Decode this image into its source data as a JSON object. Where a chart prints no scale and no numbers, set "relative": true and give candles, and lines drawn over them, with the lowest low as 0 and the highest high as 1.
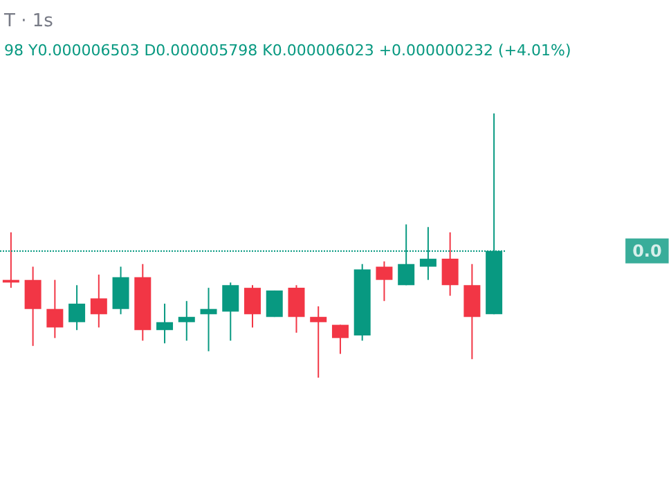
{
  "chart_data": {
    "type": "candlestick",
    "title": "T · 1s",
    "annotations": [
      "98 Y0.000006503 D0.000005798 K0.000006023 +0.000000232 (+4.01%)",
      "0.0"
    ],
    "relative": true,
    "categories": [
      null,
      null,
      null,
      null,
      null,
      null,
      null,
      null,
      null,
      null,
      null,
      null,
      null,
      null,
      null,
      null,
      null,
      null,
      null,
      null,
      null,
      null,
      null
    ],
    "ohlc": [
      [
        0.37,
        0.55,
        0.34,
        0.36
      ],
      [
        0.37,
        0.42,
        0.12,
        0.26
      ],
      [
        0.26,
        0.37,
        0.15,
        0.19
      ],
      [
        0.21,
        0.35,
        0.18,
        0.28
      ],
      [
        0.3,
        0.39,
        0.19,
        0.24
      ],
      [
        0.26,
        0.42,
        0.24,
        0.38
      ],
      [
        0.38,
        0.43,
        0.14,
        0.18
      ],
      [
        0.18,
        0.28,
        0.13,
        0.21
      ],
      [
        0.21,
        0.29,
        0.14,
        0.23
      ],
      [
        0.24,
        0.34,
        0.1,
        0.26
      ],
      [
        0.25,
        0.36,
        0.14,
        0.35
      ],
      [
        0.34,
        0.35,
        0.19,
        0.24
      ],
      [
        0.23,
        0.33,
        0.23,
        0.33
      ],
      [
        0.34,
        0.35,
        0.17,
        0.23
      ],
      [
        0.23,
        0.27,
        0.0,
        0.21
      ],
      [
        0.2,
        0.2,
        0.09,
        0.15
      ],
      [
        0.16,
        0.43,
        0.14,
        0.41
      ],
      [
        0.42,
        0.44,
        0.29,
        0.37
      ],
      [
        0.35,
        0.58,
        0.35,
        0.43
      ],
      [
        0.42,
        0.57,
        0.37,
        0.45
      ],
      [
        0.45,
        0.55,
        0.31,
        0.35
      ],
      [
        0.35,
        0.43,
        0.07,
        0.23
      ],
      [
        0.24,
        1.0,
        0.24,
        0.48
      ]
    ],
    "colors": [
      "#f23645",
      "#f23645",
      "#f23645",
      "#089981",
      "#f23645",
      "#089981",
      "#f23645",
      "#089981",
      "#089981",
      "#089981",
      "#089981",
      "#f23645",
      "#089981",
      "#f23645",
      "#f23645",
      "#f23645",
      "#089981",
      "#f23645",
      "#089981",
      "#089981",
      "#f23645",
      "#f23645",
      "#089981"
    ],
    "ref_lines": [
      {
        "axis": "y",
        "value": 0.48,
        "color": "#089981",
        "line_style": "dotted"
      }
    ]
  }
}
